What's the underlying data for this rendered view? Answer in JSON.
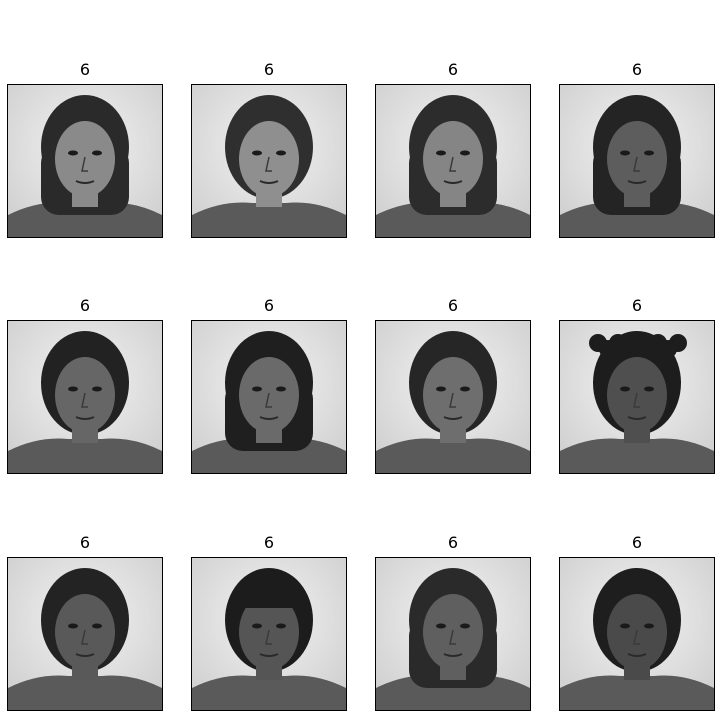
{
  "figure": {
    "tiles": [
      {
        "label": "6",
        "photo": "grayscale-face-photo-long-straight-hair",
        "tone": "#8a8a8a",
        "hair": "#2a2a2a"
      },
      {
        "label": "6",
        "photo": "grayscale-face-photo-hair-pulled-back",
        "tone": "#8f8f8f",
        "hair": "#2f2f2f"
      },
      {
        "label": "6",
        "photo": "grayscale-face-photo-long-straight-hair",
        "tone": "#858585",
        "hair": "#2c2c2c"
      },
      {
        "label": "6",
        "photo": "grayscale-face-photo-long-braided-hair",
        "tone": "#5d5d5d",
        "hair": "#242424"
      },
      {
        "label": "6",
        "photo": "grayscale-face-photo-hair-pulled-back",
        "tone": "#666666",
        "hair": "#222222"
      },
      {
        "label": "6",
        "photo": "grayscale-face-photo-shoulder-length-hair",
        "tone": "#6a6a6a",
        "hair": "#1f1f1f"
      },
      {
        "label": "6",
        "photo": "grayscale-face-photo-hair-pulled-back",
        "tone": "#6e6e6e",
        "hair": "#262626"
      },
      {
        "label": "6",
        "photo": "grayscale-face-photo-curly-hair",
        "tone": "#4f4f4f",
        "hair": "#1d1d1d"
      },
      {
        "label": "6",
        "photo": "grayscale-face-photo-hair-pulled-back",
        "tone": "#595959",
        "hair": "#232323"
      },
      {
        "label": "6",
        "photo": "grayscale-face-photo-bangs",
        "tone": "#555555",
        "hair": "#1c1c1c"
      },
      {
        "label": "6",
        "photo": "grayscale-face-photo-braided-hair",
        "tone": "#5f5f5f",
        "hair": "#2a2a2a"
      },
      {
        "label": "6",
        "photo": "grayscale-face-photo-short-hair",
        "tone": "#4a4a4a",
        "hair": "#1e1e1e"
      }
    ]
  }
}
